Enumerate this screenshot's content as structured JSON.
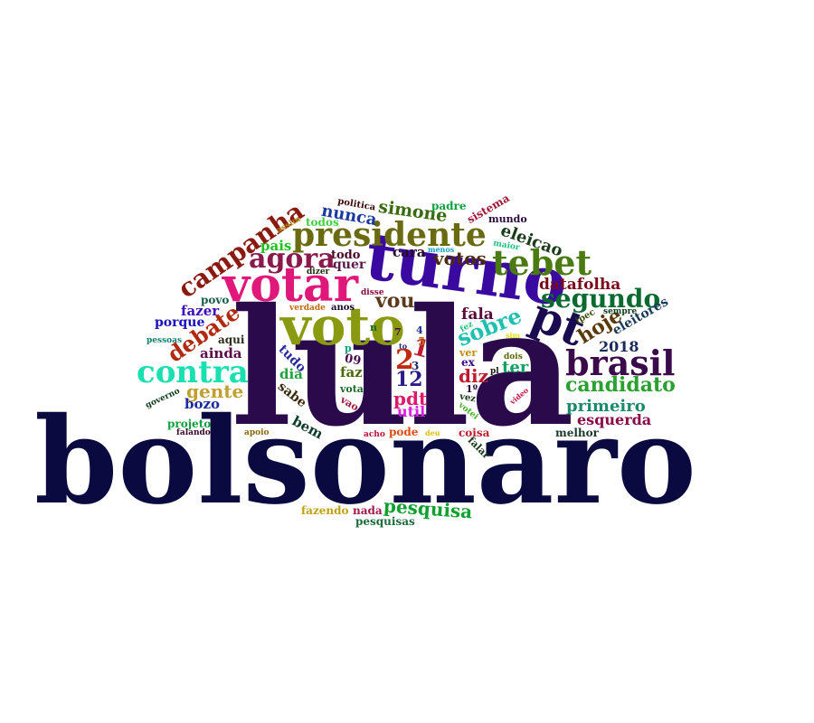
{
  "words": [
    {
      "t": "bolsonaro",
      "c": "#0a0a40"
    },
    {
      "t": "lula",
      "c": "#2a0a4a"
    },
    {
      "t": "turno",
      "c": "#3a0aa0"
    },
    {
      "t": "votar",
      "c": "#e0187a"
    },
    {
      "t": "voto",
      "c": "#8a9a10"
    },
    {
      "t": "presidente",
      "c": "#6a6a10"
    },
    {
      "t": "tebet",
      "c": "#4a7a10"
    },
    {
      "t": "brasil",
      "c": "#3a0a4a"
    },
    {
      "t": "contra",
      "c": "#18e0b0"
    },
    {
      "t": "pt",
      "c": "#1a0a50"
    },
    {
      "t": "campanha",
      "c": "#8a1a10"
    },
    {
      "t": "agora",
      "c": "#8a1a4a"
    },
    {
      "t": "segundo",
      "c": "#0a6a30"
    },
    {
      "t": "debate",
      "c": "#b02a10"
    },
    {
      "t": "candidato",
      "c": "#2aa030"
    },
    {
      "t": "sobre",
      "c": "#20c0b0"
    },
    {
      "t": "hoje",
      "c": "#5a3a0a"
    },
    {
      "t": "simone",
      "c": "#3a6a10"
    },
    {
      "t": "eleicao",
      "c": "#1a3a1a"
    },
    {
      "t": "nunca",
      "c": "#1a3aa0"
    },
    {
      "t": "votos",
      "c": "#4a2a0a"
    },
    {
      "t": "datafolha",
      "c": "#7a0a1a"
    },
    {
      "t": "primeiro",
      "c": "#1a8a6a"
    },
    {
      "t": "esquerda",
      "c": "#8a0a4a"
    },
    {
      "t": "vou",
      "c": "#5a3a1a"
    },
    {
      "t": "gente",
      "c": "#c0a030"
    },
    {
      "t": "pesquisa",
      "c": "#10a030"
    },
    {
      "t": "2",
      "c": "#c02a10"
    },
    {
      "t": "12",
      "c": "#2a1a8a"
    },
    {
      "t": "1",
      "c": "#c01a30"
    },
    {
      "t": "pdt",
      "c": "#e01a6a"
    },
    {
      "t": "util",
      "c": "#e020e0"
    },
    {
      "t": "diz",
      "c": "#c01a30"
    },
    {
      "t": "ter",
      "c": "#10a060"
    },
    {
      "t": "fala",
      "c": "#5a0a3a"
    },
    {
      "t": "2018",
      "c": "#1a2a5a"
    },
    {
      "t": "eleitores",
      "c": "#1a3a5a"
    },
    {
      "t": "cara",
      "c": "#2a0a2a"
    },
    {
      "t": "todo",
      "c": "#4a0a2a"
    },
    {
      "t": "quer",
      "c": "#5a1a4a"
    },
    {
      "t": "pais",
      "c": "#20c020"
    },
    {
      "t": "todos",
      "c": "#40d040"
    },
    {
      "t": "fazer",
      "c": "#3a10c0"
    },
    {
      "t": "porque",
      "c": "#1a10c0"
    },
    {
      "t": "ainda",
      "c": "#5a0a4a"
    },
    {
      "t": "aqui",
      "c": "#2a2a1a"
    },
    {
      "t": "povo",
      "c": "#1a5a4a"
    },
    {
      "t": "bozo",
      "c": "#1a2aa0"
    },
    {
      "t": "tudo",
      "c": "#2a2aa0"
    },
    {
      "t": "dia",
      "c": "#20a040"
    },
    {
      "t": "faz",
      "c": "#4a6a0a"
    },
    {
      "t": "sabe",
      "c": "#3a2a0a"
    },
    {
      "t": "bem",
      "c": "#0a3a2a"
    },
    {
      "t": "padre",
      "c": "#10a040"
    },
    {
      "t": "sistema",
      "c": "#a01a3a"
    },
    {
      "t": "mundo",
      "c": "#2a0a3a"
    },
    {
      "t": "politica",
      "c": "#3a0a0a"
    },
    {
      "t": "assim",
      "c": "#b08a10"
    },
    {
      "t": "menos",
      "c": "#10a0c0"
    },
    {
      "t": "maior",
      "c": "#20c080"
    },
    {
      "t": "ipec",
      "c": "#3a4a0a"
    },
    {
      "t": "sempre",
      "c": "#0a3a1a"
    },
    {
      "t": "dizer",
      "c": "#1a2a0a"
    },
    {
      "t": "disse",
      "c": "#8a0a3a"
    },
    {
      "t": "verdade",
      "c": "#c06a10"
    },
    {
      "t": "anos",
      "c": "#1a0a2a"
    },
    {
      "t": "pessoas",
      "c": "#10806a"
    },
    {
      "t": "governo",
      "c": "#0a3a1a"
    },
    {
      "t": "projeto",
      "c": "#10a040"
    },
    {
      "t": "falando",
      "c": "#3a0a2a"
    },
    {
      "t": "apoio",
      "c": "#8a6a10"
    },
    {
      "t": "acho",
      "c": "#c0103a"
    },
    {
      "t": "pode",
      "c": "#e04a10"
    },
    {
      "t": "deu",
      "c": "#e0c010"
    },
    {
      "t": "coisa",
      "c": "#c01a30"
    },
    {
      "t": "melhor",
      "c": "#1a3a2a"
    },
    {
      "t": "falar",
      "c": "#1a3a1a"
    },
    {
      "t": "votei",
      "c": "#40b020"
    },
    {
      "t": "video",
      "c": "#c01a4a"
    },
    {
      "t": "vez",
      "c": "#1a3a1a"
    },
    {
      "t": "1º",
      "c": "#2a0a3a"
    },
    {
      "t": "ex",
      "c": "#3a0a8a"
    },
    {
      "t": "ver",
      "c": "#c08a10"
    },
    {
      "t": "fez",
      "c": "#20c080"
    },
    {
      "t": "dois",
      "c": "#5a6a0a"
    },
    {
      "t": "pl",
      "c": "#1a1a0a"
    },
    {
      "t": "sim",
      "c": "#e0e010"
    },
    {
      "t": "vota",
      "c": "#1a6a2a"
    },
    {
      "t": "vao",
      "c": "#a01a3a"
    },
    {
      "t": "09",
      "c": "#4a0a4a"
    },
    {
      "t": "3",
      "c": "#1a2a6a"
    },
    {
      "t": "4",
      "c": "#1a2a8a"
    },
    {
      "t": "5",
      "c": "#c06a10"
    },
    {
      "t": "7",
      "c": "#4a0a4a"
    },
    {
      "t": "n",
      "c": "#1a6a2a"
    },
    {
      "t": "p",
      "c": "#10a080"
    },
    {
      "t": "to",
      "c": "#1a2a6a"
    },
    {
      "t": "fazendo",
      "c": "#c0a010"
    },
    {
      "t": "nada",
      "c": "#a01a4a"
    },
    {
      "t": "pesquisas",
      "c": "#1a6a3a"
    }
  ]
}
